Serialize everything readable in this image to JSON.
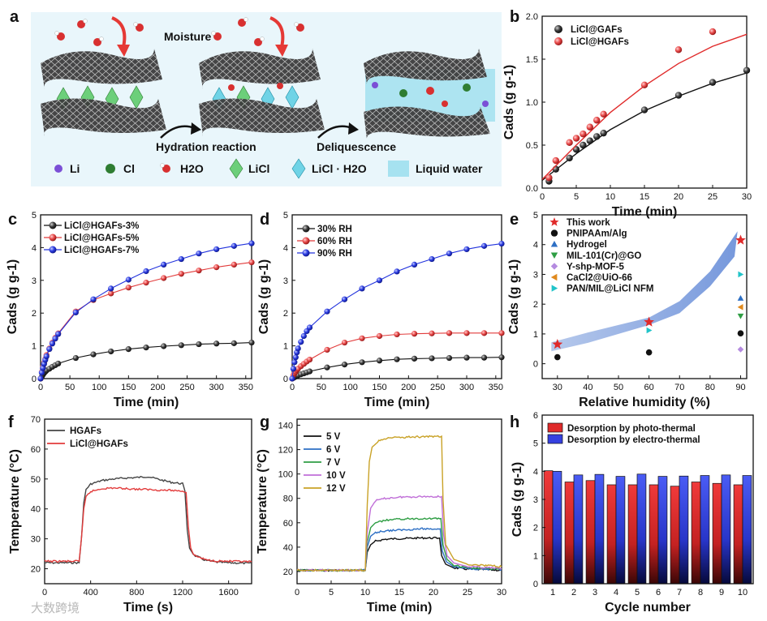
{
  "panel_labels": [
    "a",
    "b",
    "c",
    "d",
    "e",
    "f",
    "g",
    "h"
  ],
  "schematic": {
    "moisture": "Moisture",
    "hydration": "Hydration reaction",
    "deliquescence": "Deliquescence",
    "legend": [
      "Li",
      "Cl",
      "H2O",
      "LiCl",
      "LiCl · H2O",
      "Liquid water"
    ],
    "colors": {
      "li": "#7b4fd6",
      "cl": "#2f7d32",
      "licl": "#6ccf7a",
      "licl_h2o": "#6fd3e6",
      "water": "#a6e2f0",
      "arrow": "#e53935"
    }
  },
  "watermark": "大数跨境",
  "chart_data": [
    {
      "id": "b",
      "type": "scatter",
      "xlabel": "Time (min)",
      "ylabel": "Cads (g g-1)",
      "xlim": [
        0,
        30
      ],
      "ylim": [
        0,
        2.0
      ],
      "xticks": [
        0,
        5,
        10,
        15,
        20,
        25,
        30
      ],
      "yticks": [
        0.0,
        0.5,
        1.0,
        1.5,
        2.0
      ],
      "legend_position": "top-left",
      "series": [
        {
          "name": "LiCl@GAFs",
          "color": "#3a3a3a",
          "x": [
            1,
            2,
            4,
            5,
            6,
            7,
            8,
            9,
            15,
            20,
            25,
            30
          ],
          "y": [
            0.08,
            0.22,
            0.35,
            0.45,
            0.5,
            0.55,
            0.6,
            0.64,
            0.91,
            1.08,
            1.23,
            1.37
          ],
          "fit": [
            [
              0,
              0.09
            ],
            [
              5,
              0.4
            ],
            [
              10,
              0.68
            ],
            [
              15,
              0.9
            ],
            [
              20,
              1.07
            ],
            [
              25,
              1.22
            ],
            [
              30,
              1.34
            ]
          ]
        },
        {
          "name": "LiCl@HGAFs",
          "color": "#e23b3b",
          "x": [
            1,
            2,
            4,
            5,
            6,
            7,
            8,
            9,
            15,
            20,
            25
          ],
          "y": [
            0.12,
            0.32,
            0.53,
            0.58,
            0.63,
            0.71,
            0.79,
            0.86,
            1.2,
            1.61,
            1.82
          ],
          "fit": [
            [
              0,
              0.1
            ],
            [
              5,
              0.5
            ],
            [
              10,
              0.88
            ],
            [
              15,
              1.19
            ],
            [
              20,
              1.45
            ],
            [
              25,
              1.65
            ],
            [
              30,
              1.79
            ]
          ]
        }
      ]
    },
    {
      "id": "c",
      "type": "line",
      "xlabel": "Time (min)",
      "ylabel": "Cads (g g-1)",
      "xlim": [
        0,
        360
      ],
      "ylim": [
        0,
        5
      ],
      "xticks": [
        0,
        50,
        100,
        150,
        200,
        250,
        300,
        350
      ],
      "yticks": [
        0,
        1,
        2,
        3,
        4,
        5
      ],
      "legend_position": "top-left",
      "series": [
        {
          "name": "LiCl@HGAFs-3%",
          "color": "#111111",
          "x": [
            0,
            2,
            4,
            6,
            8,
            10,
            15,
            20,
            25,
            30,
            60,
            90,
            120,
            150,
            180,
            210,
            240,
            270,
            300,
            330,
            360
          ],
          "y": [
            0.0,
            0.06,
            0.12,
            0.17,
            0.21,
            0.25,
            0.3,
            0.36,
            0.41,
            0.46,
            0.63,
            0.74,
            0.83,
            0.9,
            0.95,
            0.99,
            1.02,
            1.05,
            1.07,
            1.08,
            1.1
          ]
        },
        {
          "name": "LiCl@HGAFs-5%",
          "color": "#e23b3b",
          "x": [
            0,
            2,
            4,
            6,
            8,
            10,
            15,
            20,
            25,
            30,
            60,
            90,
            120,
            150,
            180,
            210,
            240,
            270,
            300,
            330,
            360
          ],
          "y": [
            0.0,
            0.2,
            0.35,
            0.48,
            0.6,
            0.72,
            0.92,
            1.1,
            1.25,
            1.38,
            2.05,
            2.4,
            2.6,
            2.78,
            2.93,
            3.07,
            3.2,
            3.3,
            3.4,
            3.48,
            3.55
          ]
        },
        {
          "name": "LiCl@HGAFs-7%",
          "color": "#2233dd",
          "x": [
            0,
            2,
            4,
            6,
            8,
            10,
            15,
            20,
            25,
            30,
            60,
            90,
            120,
            150,
            180,
            210,
            240,
            270,
            300,
            330,
            360
          ],
          "y": [
            0.0,
            0.18,
            0.32,
            0.45,
            0.57,
            0.68,
            0.9,
            1.07,
            1.22,
            1.36,
            2.02,
            2.42,
            2.75,
            3.02,
            3.28,
            3.48,
            3.65,
            3.82,
            3.95,
            4.05,
            4.13
          ]
        }
      ]
    },
    {
      "id": "d",
      "type": "line",
      "xlabel": "Time (min)",
      "ylabel": "Cads (g g-1)",
      "xlim": [
        0,
        360
      ],
      "ylim": [
        0,
        5
      ],
      "xticks": [
        0,
        50,
        100,
        150,
        200,
        250,
        300,
        350
      ],
      "yticks": [
        0,
        1,
        2,
        3,
        4,
        5
      ],
      "legend_position": "top-left",
      "series": [
        {
          "name": "30% RH",
          "color": "#111111",
          "x": [
            0,
            2,
            4,
            6,
            8,
            10,
            15,
            20,
            25,
            30,
            60,
            90,
            120,
            150,
            180,
            210,
            240,
            270,
            300,
            330,
            360
          ],
          "y": [
            0.0,
            0.02,
            0.04,
            0.06,
            0.08,
            0.1,
            0.13,
            0.16,
            0.19,
            0.22,
            0.34,
            0.43,
            0.5,
            0.55,
            0.59,
            0.61,
            0.62,
            0.63,
            0.64,
            0.64,
            0.65
          ]
        },
        {
          "name": "60% RH",
          "color": "#e23b3b",
          "x": [
            0,
            2,
            4,
            6,
            8,
            10,
            15,
            20,
            25,
            30,
            60,
            90,
            120,
            150,
            180,
            210,
            240,
            270,
            300,
            330,
            360
          ],
          "y": [
            0.0,
            0.1,
            0.16,
            0.21,
            0.26,
            0.3,
            0.38,
            0.45,
            0.52,
            0.58,
            0.88,
            1.1,
            1.23,
            1.3,
            1.35,
            1.37,
            1.38,
            1.39,
            1.39,
            1.39,
            1.39
          ]
        },
        {
          "name": "90% RH",
          "color": "#2233dd",
          "x": [
            0,
            2,
            4,
            6,
            8,
            10,
            15,
            20,
            25,
            30,
            60,
            90,
            120,
            150,
            180,
            210,
            240,
            270,
            300,
            330,
            360
          ],
          "y": [
            0.0,
            0.3,
            0.5,
            0.65,
            0.8,
            0.92,
            1.12,
            1.3,
            1.45,
            1.56,
            2.05,
            2.42,
            2.75,
            3.0,
            3.27,
            3.48,
            3.65,
            3.82,
            3.95,
            4.05,
            4.12
          ]
        }
      ]
    },
    {
      "id": "e",
      "type": "scatter",
      "xlabel": "Relative humidity (%)",
      "ylabel": "Cads (g g-1)",
      "xlim": [
        25,
        92
      ],
      "ylim": [
        -0.5,
        5
      ],
      "xticks": [
        30,
        40,
        50,
        60,
        70,
        80,
        90
      ],
      "yticks": [
        0,
        1,
        2,
        3,
        4,
        5
      ],
      "legend_position": "top-left",
      "band": {
        "color": "#7f9fe0",
        "upper": [
          [
            28,
            0.72
          ],
          [
            40,
            1.05
          ],
          [
            50,
            1.3
          ],
          [
            60,
            1.55
          ],
          [
            70,
            2.1
          ],
          [
            80,
            3.1
          ],
          [
            86,
            4.0
          ],
          [
            89,
            4.45
          ]
        ],
        "lower": [
          [
            88,
            3.6
          ],
          [
            80,
            2.6
          ],
          [
            70,
            1.7
          ],
          [
            60,
            1.3
          ],
          [
            50,
            1.0
          ],
          [
            40,
            0.7
          ],
          [
            28,
            0.42
          ]
        ]
      },
      "series": [
        {
          "name": "This work",
          "marker": "star",
          "color": "#e02a2a",
          "x": [
            30,
            60,
            90
          ],
          "y": [
            0.65,
            1.4,
            4.15
          ]
        },
        {
          "name": "PNIPAAm/Alg",
          "marker": "circle",
          "color": "#111111",
          "x": [
            30,
            60,
            90
          ],
          "y": [
            0.22,
            0.38,
            1.02
          ]
        },
        {
          "name": "Hydrogel",
          "marker": "triangle-up",
          "color": "#2d6fc4",
          "x": [
            90
          ],
          "y": [
            2.2
          ]
        },
        {
          "name": "MIL-101(Cr)@GO",
          "marker": "triangle-down",
          "color": "#2f9e44",
          "x": [
            90
          ],
          "y": [
            1.6
          ]
        },
        {
          "name": "Y-shp-MOF-5",
          "marker": "diamond",
          "color": "#b58be0",
          "x": [
            90
          ],
          "y": [
            0.48
          ]
        },
        {
          "name": "CaCl2@UiO-66",
          "marker": "triangle-left",
          "color": "#e08a1e",
          "x": [
            90
          ],
          "y": [
            1.9
          ]
        },
        {
          "name": "PAN/MIL@LiCl NFM",
          "marker": "triangle-right",
          "color": "#21c4c9",
          "x": [
            60,
            90
          ],
          "y": [
            1.12,
            3.0
          ]
        }
      ]
    },
    {
      "id": "f",
      "type": "line",
      "xlabel": "Time (s)",
      "ylabel": "Temperature (°C)",
      "xlim": [
        0,
        1800
      ],
      "ylim": [
        15,
        70
      ],
      "xticks": [
        0,
        400,
        800,
        1200,
        1600
      ],
      "yticks": [
        20,
        30,
        40,
        50,
        60,
        70
      ],
      "legend_position": "top-left",
      "series": [
        {
          "name": "HGAFs",
          "color": "#444444",
          "x": [
            0,
            300,
            320,
            340,
            360,
            400,
            500,
            600,
            700,
            800,
            900,
            1000,
            1100,
            1200,
            1220,
            1240,
            1260,
            1300,
            1400,
            1500,
            1600,
            1700,
            1800
          ],
          "y": [
            22,
            22,
            30,
            42,
            46.5,
            48.3,
            49.5,
            50.0,
            50.3,
            50.5,
            50.8,
            49.8,
            48.9,
            48.4,
            46,
            33,
            27,
            24.5,
            22.8,
            22.2,
            22.0,
            21.9,
            21.8
          ]
        },
        {
          "name": "LiCl@HGAFs",
          "color": "#e23b3b",
          "x": [
            0,
            300,
            320,
            340,
            360,
            400,
            500,
            600,
            700,
            800,
            900,
            1000,
            1100,
            1200,
            1230,
            1250,
            1270,
            1300,
            1400,
            1500,
            1600,
            1700,
            1800
          ],
          "y": [
            22.5,
            22.5,
            30,
            40,
            44,
            45.8,
            46.8,
            47.0,
            46.8,
            46.6,
            46.5,
            46.3,
            46.2,
            46.0,
            45.5,
            34,
            27,
            24.5,
            23.0,
            22.6,
            22.5,
            22.4,
            22.3
          ]
        }
      ]
    },
    {
      "id": "g",
      "type": "line",
      "xlabel": "Time (min)",
      "ylabel": "Temperature (°C)",
      "xlim": [
        0,
        30
      ],
      "ylim": [
        10,
        145
      ],
      "xticks": [
        0,
        5,
        10,
        15,
        20,
        25,
        30
      ],
      "yticks": [
        20,
        40,
        60,
        80,
        100,
        120,
        140
      ],
      "legend_position": "top-left",
      "series": [
        {
          "name": "5 V",
          "color": "#111111",
          "x": [
            0,
            10,
            10.3,
            10.8,
            11.5,
            13,
            15,
            18,
            20.9,
            21.2,
            21.8,
            23,
            25,
            30
          ],
          "y": [
            21,
            21,
            36,
            42,
            45,
            46.5,
            47,
            47.5,
            47.5,
            33,
            26,
            23,
            22,
            21
          ]
        },
        {
          "name": "6 V",
          "color": "#2d6fc4",
          "x": [
            0,
            10,
            10.3,
            10.8,
            11.5,
            13,
            15,
            18,
            21.0,
            21.3,
            21.9,
            23,
            25,
            30
          ],
          "y": [
            21,
            21,
            40,
            49,
            52,
            53.5,
            54,
            55,
            55,
            37,
            28,
            24,
            22.5,
            21.5
          ]
        },
        {
          "name": "7 V",
          "color": "#2f9e44",
          "x": [
            0,
            10,
            10.3,
            10.8,
            11.5,
            13,
            15,
            18,
            21.1,
            21.4,
            22,
            23,
            25,
            30
          ],
          "y": [
            21,
            21,
            44,
            56,
            60,
            62,
            63,
            63.5,
            63.5,
            42,
            30,
            25,
            23,
            22
          ]
        },
        {
          "name": "10 V",
          "color": "#c06fd8",
          "x": [
            0,
            10,
            10.3,
            10.8,
            11.5,
            13,
            15,
            18,
            21.2,
            21.5,
            22,
            23,
            25,
            30
          ],
          "y": [
            21,
            21,
            52,
            72,
            78,
            80,
            81,
            81.5,
            81.5,
            50,
            33,
            27,
            24,
            22.5
          ]
        },
        {
          "name": "12 V",
          "color": "#c9a227",
          "x": [
            0,
            10,
            10.3,
            10.6,
            11,
            12,
            13,
            15,
            18,
            21.2,
            21.4,
            21.8,
            23,
            25,
            30
          ],
          "y": [
            21,
            21,
            75,
            110,
            122,
            127,
            129,
            130,
            130.5,
            131,
            80,
            42,
            30,
            26,
            24
          ]
        }
      ]
    },
    {
      "id": "h",
      "type": "bar",
      "xlabel": "Cycle number",
      "ylabel": "Cads (g g-1)",
      "ylim": [
        0,
        6
      ],
      "categories": [
        "1",
        "2",
        "3",
        "4",
        "5",
        "6",
        "7",
        "8",
        "9",
        "10"
      ],
      "yticks": [
        0,
        1,
        2,
        3,
        4,
        5,
        6
      ],
      "legend_position": "top",
      "series": [
        {
          "name": "Desorption by photo-thermal",
          "color": "#e02a2a",
          "values": [
            4.02,
            3.62,
            3.67,
            3.52,
            3.52,
            3.52,
            3.47,
            3.62,
            3.57,
            3.52
          ]
        },
        {
          "name": "Desorption by electro-thermal",
          "color": "#3540e0",
          "values": [
            4.0,
            3.87,
            3.89,
            3.82,
            3.9,
            3.82,
            3.83,
            3.85,
            3.87,
            3.85
          ]
        }
      ]
    }
  ]
}
